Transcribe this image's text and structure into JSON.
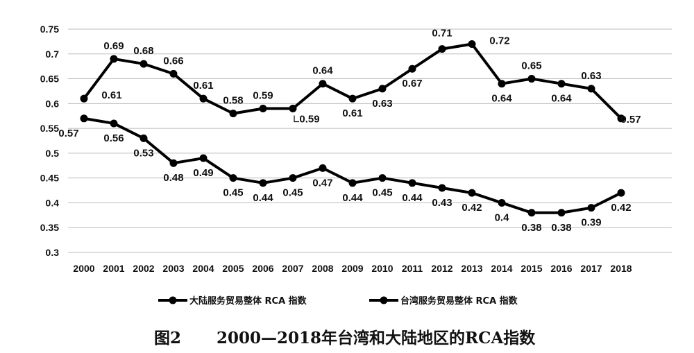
{
  "chart_data": {
    "type": "line",
    "title": "",
    "xlabel": "",
    "ylabel": "",
    "x": [
      "2000",
      "2001",
      "2002",
      "2003",
      "2004",
      "2005",
      "2006",
      "2007",
      "2008",
      "2009",
      "2010",
      "2011",
      "2012",
      "2013",
      "2014",
      "2015",
      "2016",
      "2017",
      "2018"
    ],
    "y_ticks": [
      "0.75",
      "0.7",
      "0.65",
      "0.6",
      "0.55",
      "0.5",
      "0.45",
      "0.4",
      "0.35",
      "0.3"
    ],
    "ylim": [
      0.3,
      0.75
    ],
    "grid": "horizontal",
    "legend_position": "bottom",
    "series": [
      {
        "name": "大陆服务贸易整体 RCA 指数",
        "values": [
          0.57,
          0.56,
          0.53,
          0.48,
          0.49,
          0.45,
          0.44,
          0.45,
          0.47,
          0.44,
          0.45,
          0.44,
          0.43,
          0.42,
          0.4,
          0.38,
          0.38,
          0.39,
          0.42
        ],
        "labels": [
          "0.57",
          "0.56",
          "0.53",
          "0.48",
          "0.49",
          "0.45",
          "0.44",
          "0.45",
          "0.47",
          "0.44",
          "0.45",
          "0.44",
          "0.43",
          "0.42",
          "0.4",
          "0.38",
          "0.38",
          "0.39",
          "0.42"
        ],
        "label_position": "below"
      },
      {
        "name": "台湾服务贸易整体 RCA 指数",
        "values": [
          0.61,
          0.69,
          0.68,
          0.66,
          0.61,
          0.58,
          0.59,
          0.59,
          0.64,
          0.61,
          0.63,
          0.67,
          0.71,
          0.72,
          0.64,
          0.65,
          0.64,
          0.63,
          0.57
        ],
        "labels": [
          "0.61",
          "0.69",
          "0.68",
          "0.66",
          "0.61",
          "0.58",
          "0.59",
          "0.59",
          "0.64",
          "0.61",
          "0.63",
          "0.67",
          "0.71",
          "0.72",
          "0.64",
          "0.65",
          "0.64",
          "0.63",
          "0.57"
        ],
        "label_position": "mixed"
      }
    ],
    "colors": {
      "line": "#000000",
      "grid": "#bbbbbb"
    }
  },
  "caption": {
    "figure_no": "图2",
    "text": "2000—2018年台湾和大陆地区的RCA指数"
  }
}
